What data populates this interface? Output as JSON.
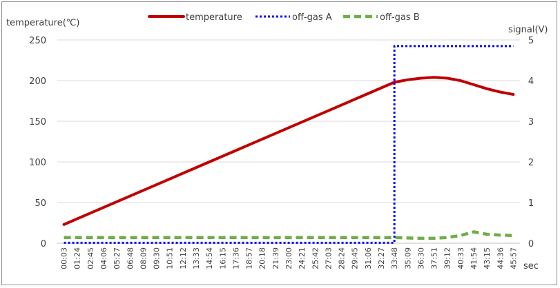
{
  "chart_data": {
    "type": "line",
    "legend_position": "top",
    "grid": true,
    "y_left_label": "temperature(℃)",
    "y_right_label": "signal(V)",
    "x_label": "sec",
    "y_left_lim": [
      0,
      250
    ],
    "y_right_lim": [
      0,
      5
    ],
    "y_left_ticks": [
      "0",
      "50",
      "100",
      "150",
      "200",
      "250"
    ],
    "y_right_ticks": [
      "0",
      "1",
      "2",
      "3",
      "4",
      "5"
    ],
    "categories": [
      "00:03",
      "01:24",
      "02:45",
      "04:06",
      "05:27",
      "06:48",
      "08:09",
      "09:30",
      "10:51",
      "12:12",
      "13:33",
      "14:54",
      "16:15",
      "17:36",
      "18:57",
      "20:18",
      "21:39",
      "23:00",
      "24:21",
      "25:42",
      "27:03",
      "28:24",
      "29:45",
      "31:06",
      "32:27",
      "33:48",
      "35:09",
      "36:30",
      "37:51",
      "39:12",
      "40:33",
      "41:54",
      "43:15",
      "44:36",
      "45:57"
    ],
    "series": [
      {
        "name": "temperature",
        "axis": "left",
        "color": "#c00000",
        "style": "solid",
        "values": [
          23,
          30,
          37,
          44,
          51,
          58,
          65,
          72,
          79,
          86,
          93,
          100,
          107,
          114,
          121,
          128,
          135,
          142,
          149,
          156,
          163,
          170,
          177,
          184,
          191,
          198,
          201,
          203,
          204,
          203,
          200,
          195,
          190,
          186,
          183
        ]
      },
      {
        "name": "off-gas A",
        "axis": "right",
        "color": "#0000ff",
        "style": "dotted",
        "values": [
          0.01,
          0.01,
          0.01,
          0.01,
          0.01,
          0.01,
          0.01,
          0.01,
          0.01,
          0.01,
          0.01,
          0.01,
          0.01,
          0.01,
          0.01,
          0.01,
          0.01,
          0.01,
          0.01,
          0.01,
          0.01,
          0.01,
          0.01,
          0.01,
          0.01,
          4.85,
          4.85,
          4.85,
          4.85,
          4.85,
          4.85,
          4.85,
          4.85,
          4.85,
          4.85
        ]
      },
      {
        "name": "off-gas B",
        "axis": "right",
        "color": "#70ad47",
        "style": "dashed",
        "values": [
          0.14,
          0.14,
          0.14,
          0.14,
          0.14,
          0.14,
          0.14,
          0.14,
          0.14,
          0.14,
          0.14,
          0.14,
          0.14,
          0.14,
          0.14,
          0.14,
          0.14,
          0.14,
          0.14,
          0.14,
          0.14,
          0.14,
          0.14,
          0.14,
          0.14,
          0.14,
          0.13,
          0.12,
          0.12,
          0.14,
          0.19,
          0.28,
          0.22,
          0.2,
          0.19
        ]
      }
    ]
  }
}
